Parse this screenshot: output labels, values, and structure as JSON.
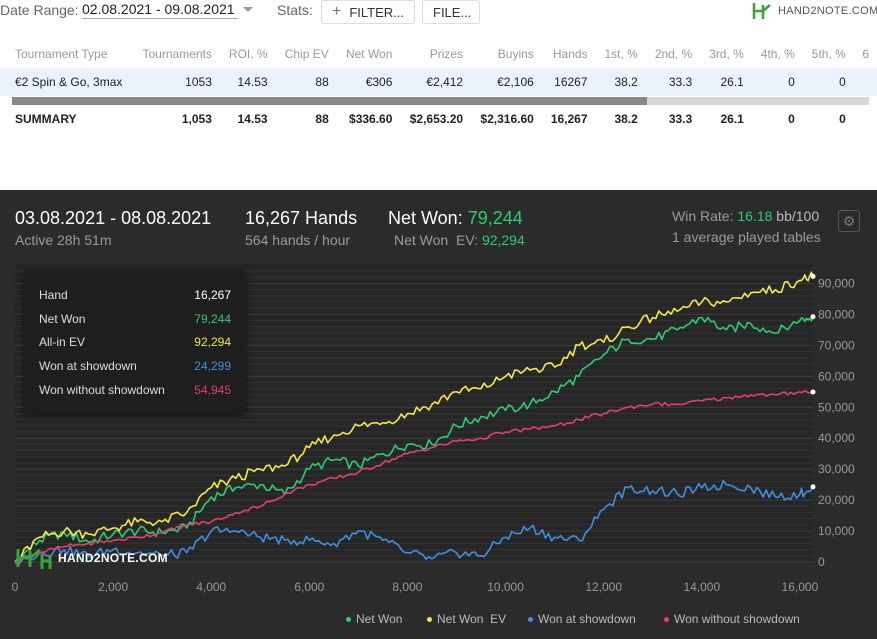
{
  "toolbar": {
    "date_range_label": "Date Range:",
    "date_range_value": "02.08.2021 - 09.08.2021",
    "stats_label": "Stats:",
    "filter_button": "FILTER...",
    "file_button": "FILE...",
    "logo_text": "HAND2NOTE.COM"
  },
  "table": {
    "columns": [
      "Tournament Type",
      "Tournaments",
      "ROI, %",
      "Chip EV",
      "Net Won",
      "Prizes",
      "Buyins",
      "Hands",
      "1st, %",
      "2nd, %",
      "3rd, %",
      "4th, %",
      "5th, %",
      "6"
    ],
    "rows": [
      [
        "€2 Spin & Go, 3max",
        "1053",
        "14.53",
        "88",
        "€306",
        "€2,412",
        "€2,106",
        "16267",
        "38.2",
        "33.3",
        "26.1",
        "0",
        "0",
        ""
      ]
    ],
    "summary": [
      "SUMMARY",
      "1,053",
      "14.53",
      "88",
      "$336.60",
      "$2,653.20",
      "$2,316.60",
      "16,267",
      "38.2",
      "33.3",
      "26.1",
      "0",
      "0",
      ""
    ]
  },
  "session": {
    "dates": "03.08.2021 - 08.08.2021",
    "active": "Active 28h 51m",
    "hands": "16,267 Hands",
    "hands_rate": "564 hands / hour",
    "net_won_label": "Net Won:",
    "net_won_value": "79,244",
    "net_won_ev_label": "Net Won  EV:",
    "net_won_ev_value": "92,294",
    "win_rate_label": "Win Rate:",
    "win_rate_value": "16.18",
    "win_rate_unit": "bb/100",
    "tables": "1 average played tables"
  },
  "tooltip": {
    "rows": [
      {
        "label": "Hand",
        "value": "16,267",
        "color": "#ffffff"
      },
      {
        "label": "Net Won",
        "value": "79,244",
        "color": "#2ecc71"
      },
      {
        "label": "All-in EV",
        "value": "92,294",
        "color": "#f4e84a"
      },
      {
        "label": "Won at showdown",
        "value": "24,299",
        "color": "#3f8fe0"
      },
      {
        "label": "Won without showdown",
        "value": "54,945",
        "color": "#e0406e"
      }
    ]
  },
  "colors": {
    "net_won": "#2ecc71",
    "net_won_ev": "#f4e84a",
    "showdown": "#3f8fe0",
    "non_showdown": "#e0406e"
  },
  "chart_data": {
    "type": "line",
    "xlabel": "",
    "ylabel": "",
    "xlim": [
      0,
      16267
    ],
    "ylim": [
      0,
      95000
    ],
    "x_ticks": [
      "0",
      "2,000",
      "4,000",
      "6,000",
      "8,000",
      "10,000",
      "12,000",
      "14,000",
      "16,000"
    ],
    "y_ticks": [
      "0",
      "10,000",
      "20,000",
      "30,000",
      "40,000",
      "50,000",
      "60,000",
      "70,000",
      "80,000",
      "90,000"
    ],
    "x": [
      0,
      500,
      1000,
      1500,
      2000,
      2500,
      3000,
      3500,
      4000,
      4500,
      5000,
      5500,
      6000,
      6500,
      7000,
      7500,
      8000,
      8500,
      9000,
      9500,
      10000,
      10500,
      11000,
      11500,
      12000,
      12500,
      13000,
      13500,
      14000,
      14500,
      15000,
      15500,
      16000,
      16267
    ],
    "series": [
      {
        "name": "Net Won",
        "key": "net_won",
        "values": [
          0,
          7000,
          9500,
          6500,
          9000,
          10000,
          9500,
          11000,
          21000,
          24000,
          25000,
          22000,
          30000,
          33000,
          31000,
          35000,
          38000,
          38000,
          44000,
          47000,
          49000,
          51000,
          55000,
          60000,
          67000,
          72000,
          72000,
          75000,
          79000,
          75000,
          77000,
          74000,
          78000,
          79244
        ]
      },
      {
        "name": "Net Won  EV",
        "key": "net_won_ev",
        "values": [
          0,
          8000,
          10000,
          9000,
          11000,
          13000,
          13000,
          16000,
          24000,
          27000,
          30000,
          31000,
          37000,
          41000,
          44000,
          45000,
          48000,
          51000,
          55000,
          56000,
          60000,
          62000,
          63000,
          70000,
          71000,
          76000,
          79000,
          81000,
          84000,
          84000,
          87000,
          88000,
          91000,
          92294
        ]
      },
      {
        "name": "Won at showdown",
        "key": "showdown",
        "values": [
          0,
          3000,
          4000,
          2000,
          4000,
          3000,
          2000,
          3000,
          10000,
          10000,
          8000,
          7000,
          7000,
          6000,
          10000,
          7000,
          3000,
          1000,
          3000,
          2000,
          8000,
          11000,
          8000,
          7000,
          17000,
          24000,
          23000,
          22000,
          24000,
          25000,
          24000,
          21000,
          22000,
          24299
        ]
      },
      {
        "name": "Won without showdown",
        "key": "non_showdown",
        "values": [
          0,
          3000,
          5000,
          6000,
          7000,
          8000,
          9500,
          12000,
          13000,
          16000,
          18000,
          22000,
          25000,
          27000,
          29000,
          32000,
          35000,
          37000,
          39000,
          40000,
          42000,
          43000,
          44000,
          46000,
          48000,
          50000,
          51000,
          51000,
          52000,
          53000,
          54000,
          54000,
          55000,
          54945
        ]
      }
    ]
  },
  "legend": [
    "Net Won",
    "Net Won  EV",
    "Won at showdown",
    "Won without showdown"
  ],
  "watermark": "HAND2NOTE.COM"
}
